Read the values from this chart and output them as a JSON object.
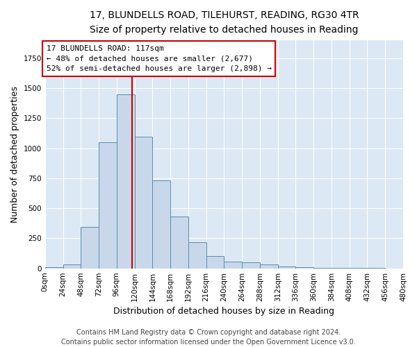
{
  "title_line1": "17, BLUNDELLS ROAD, TILEHURST, READING, RG30 4TR",
  "title_line2": "Size of property relative to detached houses in Reading",
  "xlabel": "Distribution of detached houses by size in Reading",
  "ylabel": "Number of detached properties",
  "footnote_line1": "Contains HM Land Registry data © Crown copyright and database right 2024.",
  "footnote_line2": "Contains public sector information licensed under the Open Government Licence v3.0.",
  "bin_labels": [
    "0sqm",
    "24sqm",
    "48sqm",
    "72sqm",
    "96sqm",
    "120sqm",
    "144sqm",
    "168sqm",
    "192sqm",
    "216sqm",
    "240sqm",
    "264sqm",
    "288sqm",
    "312sqm",
    "336sqm",
    "360sqm",
    "384sqm",
    "408sqm",
    "432sqm",
    "456sqm",
    "480sqm"
  ],
  "bin_edges": [
    0,
    24,
    48,
    72,
    96,
    120,
    144,
    168,
    192,
    216,
    240,
    264,
    288,
    312,
    336,
    360,
    384,
    408,
    432,
    456,
    480
  ],
  "bar_heights": [
    10,
    35,
    345,
    1050,
    1450,
    1095,
    730,
    430,
    215,
    105,
    58,
    48,
    30,
    18,
    12,
    5,
    4,
    3,
    2,
    1
  ],
  "bar_color": "#c8d8ea",
  "bar_edge_color": "#5b8db0",
  "property_size": 117,
  "vline_color": "#cc0000",
  "annotation_text_line1": "17 BLUNDELLS ROAD: 117sqm",
  "annotation_text_line2": "← 48% of detached houses are smaller (2,677)",
  "annotation_text_line3": "52% of semi-detached houses are larger (2,898) →",
  "annotation_box_facecolor": "#ffffff",
  "annotation_box_edgecolor": "#cc0000",
  "ylim": [
    0,
    1900
  ],
  "xlim": [
    0,
    480
  ],
  "fig_facecolor": "#ffffff",
  "ax_facecolor": "#dce8f4",
  "grid_color": "#ffffff",
  "title_fontsize": 10,
  "subtitle_fontsize": 9,
  "axis_label_fontsize": 9,
  "tick_fontsize": 7.5,
  "annotation_fontsize": 8,
  "footnote_fontsize": 7
}
